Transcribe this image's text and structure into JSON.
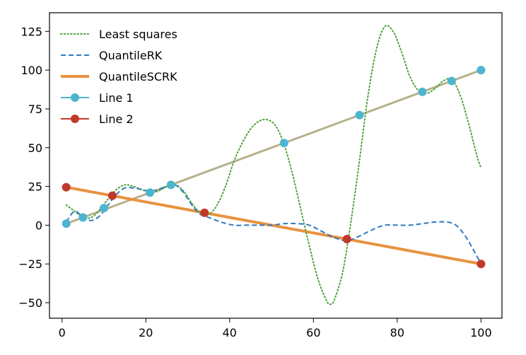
{
  "chart_data": {
    "type": "line",
    "title": "",
    "xlabel": "",
    "ylabel": "",
    "xlim": [
      -3,
      105
    ],
    "ylim": [
      -60,
      137
    ],
    "grid": false,
    "legend_position": "top-left",
    "xticks": [
      0,
      20,
      40,
      60,
      80,
      100
    ],
    "xtick_labels": [
      "0",
      "20",
      "40",
      "60",
      "80",
      "100"
    ],
    "yticks": [
      -50,
      -25,
      0,
      25,
      50,
      75,
      100,
      125
    ],
    "ytick_labels": [
      "−50",
      "−25",
      "0",
      "25",
      "50",
      "75",
      "100",
      "125"
    ],
    "series": [
      {
        "name": "Least squares",
        "style": "dotted",
        "color": "#4da338",
        "x": [
          1,
          3,
          5,
          7,
          9,
          11,
          13,
          15,
          17,
          19,
          21,
          23,
          25,
          27,
          29,
          31,
          33,
          35,
          37,
          39,
          41,
          43,
          45,
          47,
          49,
          51,
          53,
          55,
          57,
          59,
          61,
          63,
          64,
          65,
          67,
          69,
          71,
          73,
          75,
          77,
          79,
          81,
          83,
          85,
          87,
          89,
          91,
          93,
          95,
          97,
          99,
          100
        ],
        "y": [
          13,
          9,
          5,
          5,
          10,
          17,
          23,
          26,
          25,
          23,
          21,
          22,
          25,
          26,
          22,
          14,
          8,
          7,
          13,
          25,
          41,
          53,
          62,
          67,
          68,
          64,
          52,
          33,
          10,
          -13,
          -34,
          -48,
          -51,
          -48,
          -30,
          3,
          42,
          83,
          113,
          128,
          125,
          112,
          96,
          87,
          85,
          88,
          93,
          94,
          84,
          66,
          45,
          37
        ]
      },
      {
        "name": "QuantileRK",
        "style": "dashed",
        "color": "#2f7bbf",
        "x": [
          1,
          3,
          5,
          7,
          9,
          11,
          13,
          15,
          17,
          19,
          21,
          23,
          25,
          27,
          29,
          31,
          33,
          35,
          38,
          41,
          44,
          47,
          50,
          53,
          56,
          59,
          62,
          65,
          68,
          71,
          74,
          77,
          80,
          83,
          86,
          89,
          92,
          94,
          96,
          98,
          100
        ],
        "y": [
          2,
          9,
          5,
          3,
          6,
          13,
          20,
          24,
          24,
          23,
          22,
          23,
          25,
          26,
          21,
          13,
          7,
          5,
          2,
          0,
          0,
          0,
          0,
          1,
          1,
          0,
          -4,
          -8,
          -10,
          -7,
          -3,
          0,
          0,
          0,
          1,
          2,
          2,
          0,
          -6,
          -15,
          -25
        ]
      },
      {
        "name": "QuantileSCRK",
        "style": "solid-thick",
        "color": "#e8923f",
        "x": [
          1,
          100
        ],
        "y": [
          24.5,
          -25
        ]
      },
      {
        "name": "Line 1",
        "style": "solid-markers",
        "color": "#4db5cf",
        "line_color": "#b5b08a",
        "x": [
          1,
          5,
          10,
          21,
          26,
          53,
          71,
          86,
          93,
          100
        ],
        "y": [
          1,
          5,
          11,
          21,
          26,
          53,
          71,
          86,
          93,
          100
        ]
      },
      {
        "name": "Line 2",
        "style": "solid-markers",
        "color": "#c0392b",
        "line_color": "#e8923f",
        "x": [
          1,
          12,
          34,
          68,
          100
        ],
        "y": [
          24.5,
          19,
          8,
          -9,
          -25
        ]
      }
    ],
    "legend": [
      {
        "label": "Least squares",
        "style": "dotted",
        "color": "#4da338"
      },
      {
        "label": "QuantileRK",
        "style": "dashed",
        "color": "#2f7bbf"
      },
      {
        "label": "QuantileSCRK",
        "style": "solid-thick",
        "color": "#e8923f"
      },
      {
        "label": "Line 1",
        "style": "line-marker",
        "color": "#4db5cf"
      },
      {
        "label": "Line 2",
        "style": "line-marker",
        "color": "#c0392b"
      }
    ]
  }
}
